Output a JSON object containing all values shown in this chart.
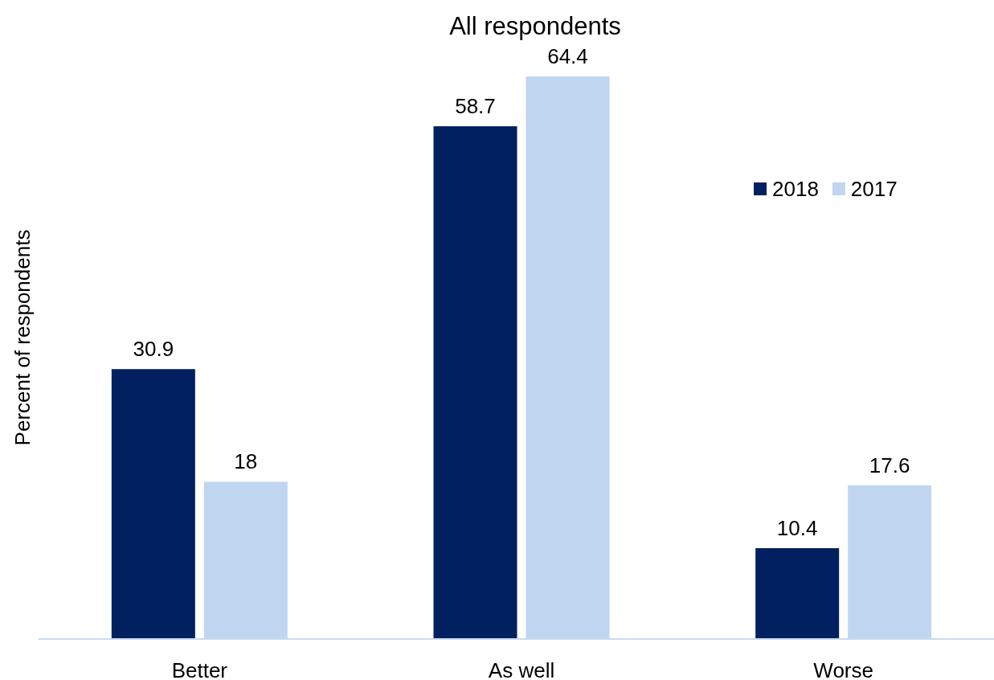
{
  "chart_data": {
    "type": "bar",
    "title": "All respondents",
    "ylabel": "Percent of respondents",
    "categories": [
      "Better",
      "As well",
      "Worse"
    ],
    "series": [
      {
        "name": "2018",
        "color": "#002060",
        "values": [
          30.9,
          58.7,
          10.4
        ]
      },
      {
        "name": "2017",
        "color": "#c0d5f0",
        "values": [
          18,
          64.4,
          17.6
        ]
      }
    ],
    "data_labels": true,
    "legend": "right"
  }
}
